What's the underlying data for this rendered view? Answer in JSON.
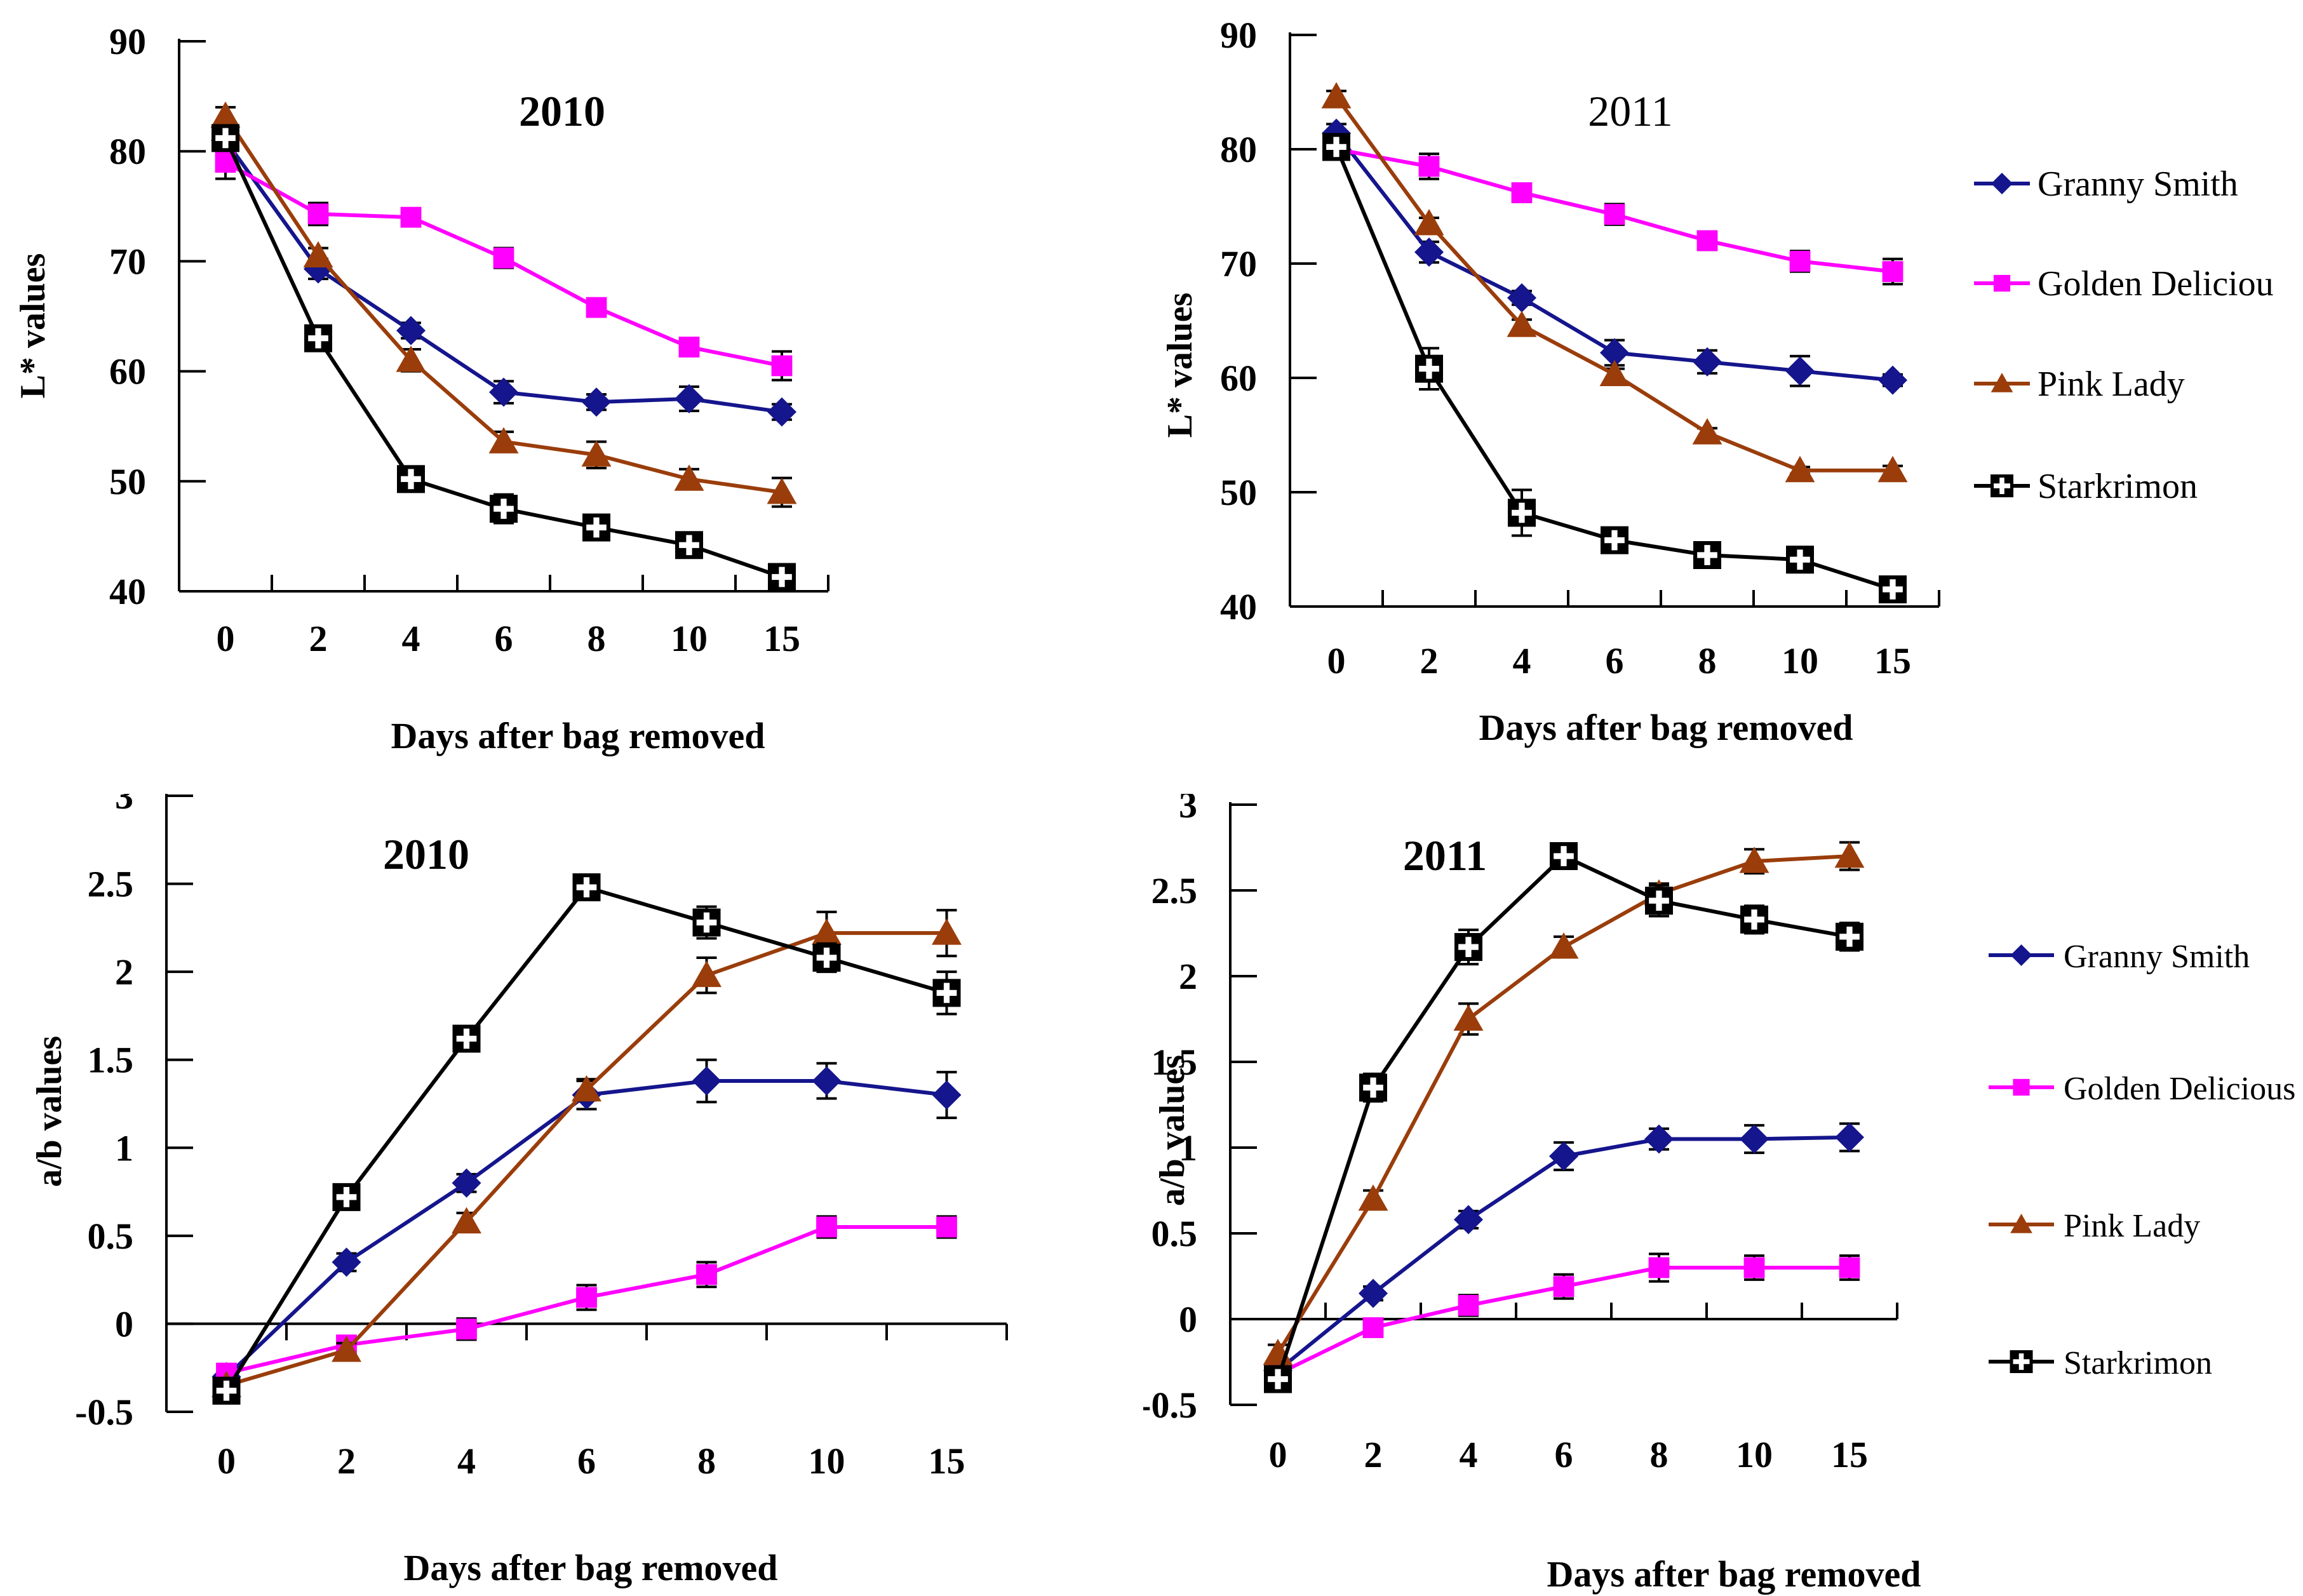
{
  "figure": {
    "background": "#FFFFFF",
    "x_axis_label": "Days after bag removed",
    "y_axis_label_top": "L* values",
    "y_axis_label_bottom": "a/b values"
  },
  "chart_data": [
    {
      "id": "l_2010",
      "type": "line",
      "title": "2010",
      "title_weight": "bold",
      "ylabel": "L* values",
      "xlabel": "Days after bag removed",
      "categories": [
        "0",
        "2",
        "4",
        "6",
        "8",
        "10",
        "15"
      ],
      "ylim": [
        40,
        90
      ],
      "ytick_step": 10,
      "grid": false,
      "legend_position": "none",
      "series": [
        {
          "name": "Granny Smith",
          "color": "#15158D",
          "marker": "diamond",
          "values": [
            81.0,
            69.3,
            63.7,
            58.1,
            57.2,
            57.5,
            56.3
          ],
          "err": [
            1.2,
            0.9,
            0.7,
            1.0,
            0.7,
            1.1,
            0.7
          ]
        },
        {
          "name": "Golden Delicious",
          "color": "#FF00FF",
          "marker": "square",
          "values": [
            79.0,
            74.3,
            74.0,
            70.3,
            65.8,
            62.2,
            60.5
          ],
          "err": [
            1.5,
            1.0,
            0.7,
            0.9,
            0.8,
            0.8,
            1.3
          ]
        },
        {
          "name": "Pink Lady",
          "color": "#9A3D0B",
          "marker": "triangle",
          "values": [
            83.2,
            70.5,
            61.0,
            53.6,
            52.4,
            50.2,
            49.0
          ],
          "err": [
            0.8,
            0.7,
            1.0,
            0.9,
            1.2,
            0.9,
            1.3
          ]
        },
        {
          "name": "Starkrimon",
          "color": "#000000",
          "marker": "square-cross",
          "values": [
            81.2,
            63.0,
            50.2,
            47.5,
            45.8,
            44.2,
            41.3
          ],
          "err": [
            1.0,
            0.9,
            1.1,
            1.3,
            0.8,
            0.9,
            1.1
          ]
        }
      ]
    },
    {
      "id": "l_2011",
      "type": "line",
      "title": "2011",
      "title_weight": "normal",
      "ylabel": "L* values",
      "xlabel": "Days after bag removed",
      "categories": [
        "0",
        "2",
        "4",
        "6",
        "8",
        "10",
        "15"
      ],
      "ylim": [
        40,
        90
      ],
      "ytick_step": 10,
      "grid": false,
      "legend_position": "right",
      "legend_items": [
        "Granny Smith",
        "Golden Deliciou",
        "Pink Lady",
        "Starkrimon"
      ],
      "series": [
        {
          "name": "Granny Smith",
          "color": "#15158D",
          "marker": "diamond",
          "values": [
            81.4,
            71.0,
            67.0,
            62.2,
            61.4,
            60.6,
            59.8
          ],
          "err": [
            0.8,
            0.9,
            0.6,
            1.1,
            1.0,
            1.3,
            0.5
          ]
        },
        {
          "name": "Golden Deliciou",
          "color": "#FF00FF",
          "marker": "square",
          "values": [
            80.0,
            78.5,
            76.2,
            74.3,
            72.0,
            70.2,
            69.3
          ],
          "err": [
            0.8,
            1.1,
            0.8,
            0.9,
            0.8,
            0.9,
            1.1
          ]
        },
        {
          "name": "Pink Lady",
          "color": "#9A3D0B",
          "marker": "triangle",
          "values": [
            84.6,
            73.5,
            64.6,
            60.3,
            55.2,
            51.9,
            51.9
          ],
          "err": [
            0.5,
            0.5,
            0.5,
            0.5,
            0.4,
            0.3,
            0.4
          ]
        },
        {
          "name": "Starkrimon",
          "color": "#000000",
          "marker": "square-cross",
          "values": [
            80.2,
            60.8,
            48.2,
            45.8,
            44.5,
            44.1,
            41.5
          ],
          "err": [
            1.0,
            1.8,
            2.0,
            1.0,
            0.5,
            0.7,
            0.6
          ]
        }
      ]
    },
    {
      "id": "ab_2010",
      "type": "line",
      "title": "2010",
      "title_weight": "bold",
      "ylabel": "a/b values",
      "xlabel": "Days after bag removed",
      "categories": [
        "0",
        "2",
        "4",
        "6",
        "8",
        "10",
        "15"
      ],
      "ylim": [
        -0.5,
        3
      ],
      "ytick_step": 0.5,
      "grid": false,
      "legend_position": "none",
      "series": [
        {
          "name": "Granny Smith",
          "color": "#15158D",
          "marker": "diamond",
          "values": [
            -0.3,
            0.35,
            0.8,
            1.3,
            1.38,
            1.38,
            1.3
          ],
          "err": [
            0.05,
            0.05,
            0.05,
            0.08,
            0.12,
            0.1,
            0.13
          ]
        },
        {
          "name": "Golden Delicious",
          "color": "#FF00FF",
          "marker": "square",
          "values": [
            -0.28,
            -0.12,
            -0.03,
            0.15,
            0.28,
            0.55,
            0.55
          ],
          "err": [
            0.04,
            0.05,
            0.06,
            0.07,
            0.07,
            0.06,
            0.06
          ]
        },
        {
          "name": "Pink Lady",
          "color": "#9A3D0B",
          "marker": "triangle",
          "values": [
            -0.35,
            -0.15,
            0.58,
            1.33,
            1.98,
            2.22,
            2.22
          ],
          "err": [
            0.04,
            0.04,
            0.05,
            0.06,
            0.1,
            0.12,
            0.13
          ]
        },
        {
          "name": "Starkrimon",
          "color": "#000000",
          "marker": "square-cross",
          "values": [
            -0.38,
            0.72,
            1.62,
            2.48,
            2.28,
            2.08,
            1.88
          ],
          "err": [
            0.05,
            0.06,
            0.06,
            0.07,
            0.09,
            0.08,
            0.12
          ]
        }
      ]
    },
    {
      "id": "ab_2011",
      "type": "line",
      "title": "2011",
      "title_weight": "bold",
      "ylabel": "a/b values",
      "xlabel": "Days after bag removed",
      "categories": [
        "0",
        "2",
        "4",
        "6",
        "8",
        "10",
        "15"
      ],
      "ylim": [
        -0.5,
        3
      ],
      "ytick_step": 0.5,
      "grid": false,
      "legend_position": "right",
      "legend_items": [
        "Granny Smith",
        "Golden Delicious",
        "Pink Lady",
        "Starkrimon"
      ],
      "series": [
        {
          "name": "Granny Smith",
          "color": "#15158D",
          "marker": "diamond",
          "values": [
            -0.3,
            0.15,
            0.58,
            0.95,
            1.05,
            1.05,
            1.06
          ],
          "err": [
            0.04,
            0.04,
            0.05,
            0.08,
            0.06,
            0.08,
            0.08
          ]
        },
        {
          "name": "Golden Delicious",
          "color": "#FF00FF",
          "marker": "square",
          "values": [
            -0.32,
            -0.05,
            0.08,
            0.19,
            0.3,
            0.3,
            0.3
          ],
          "err": [
            0.04,
            0.04,
            0.06,
            0.07,
            0.08,
            0.07,
            0.07
          ]
        },
        {
          "name": "Pink Lady",
          "color": "#9A3D0B",
          "marker": "triangle",
          "values": [
            -0.2,
            0.7,
            1.75,
            2.17,
            2.48,
            2.67,
            2.7
          ],
          "err": [
            0.05,
            0.05,
            0.09,
            0.06,
            0.06,
            0.07,
            0.08
          ]
        },
        {
          "name": "Starkrimon",
          "color": "#000000",
          "marker": "square-cross",
          "values": [
            -0.35,
            1.35,
            2.17,
            2.7,
            2.44,
            2.33,
            2.23
          ],
          "err": [
            0.06,
            0.08,
            0.1,
            0.07,
            0.09,
            0.08,
            0.08
          ]
        }
      ]
    }
  ]
}
